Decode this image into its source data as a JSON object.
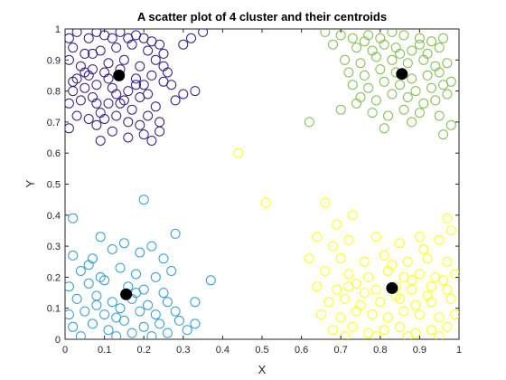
{
  "chart_data": {
    "type": "scatter",
    "title": "A scatter plot of 4 cluster and their centroids",
    "xlabel": "X",
    "ylabel": "Y",
    "xlim": [
      0,
      1
    ],
    "ylim": [
      0,
      1
    ],
    "xticks": [
      "0",
      "0.1",
      "0.2",
      "0.3",
      "0.4",
      "0.5",
      "0.6",
      "0.7",
      "0.8",
      "0.9",
      "1"
    ],
    "yticks": [
      "0",
      "0.1",
      "0.2",
      "0.3",
      "0.4",
      "0.5",
      "0.6",
      "0.7",
      "0.8",
      "0.9",
      "1"
    ],
    "grid": false,
    "marker": "open-circle",
    "series": [
      {
        "color": "#2b1d8f",
        "points": [
          [
            0.01,
            0.97
          ],
          [
            0.03,
            0.99
          ],
          [
            0.06,
            0.97
          ],
          [
            0.08,
            0.99
          ],
          [
            0.1,
            0.98
          ],
          [
            0.12,
            0.97
          ],
          [
            0.14,
            0.99
          ],
          [
            0.16,
            0.97
          ],
          [
            0.18,
            0.98
          ],
          [
            0.2,
            0.97
          ],
          [
            0.22,
            0.96
          ],
          [
            0.24,
            0.95
          ],
          [
            0.02,
            0.94
          ],
          [
            0.05,
            0.92
          ],
          [
            0.09,
            0.93
          ],
          [
            0.13,
            0.94
          ],
          [
            0.17,
            0.95
          ],
          [
            0.21,
            0.93
          ],
          [
            0.25,
            0.92
          ],
          [
            0.01,
            0.9
          ],
          [
            0.04,
            0.88
          ],
          [
            0.07,
            0.87
          ],
          [
            0.11,
            0.89
          ],
          [
            0.15,
            0.9
          ],
          [
            0.19,
            0.88
          ],
          [
            0.23,
            0.9
          ],
          [
            0.26,
            0.86
          ],
          [
            0.03,
            0.84
          ],
          [
            0.06,
            0.85
          ],
          [
            0.1,
            0.86
          ],
          [
            0.14,
            0.87
          ],
          [
            0.18,
            0.84
          ],
          [
            0.22,
            0.85
          ],
          [
            0.02,
            0.8
          ],
          [
            0.05,
            0.81
          ],
          [
            0.08,
            0.82
          ],
          [
            0.12,
            0.81
          ],
          [
            0.16,
            0.8
          ],
          [
            0.2,
            0.82
          ],
          [
            0.25,
            0.83
          ],
          [
            0.01,
            0.76
          ],
          [
            0.04,
            0.77
          ],
          [
            0.07,
            0.78
          ],
          [
            0.11,
            0.76
          ],
          [
            0.15,
            0.77
          ],
          [
            0.19,
            0.78
          ],
          [
            0.23,
            0.75
          ],
          [
            0.28,
            0.77
          ],
          [
            0.03,
            0.72
          ],
          [
            0.06,
            0.71
          ],
          [
            0.09,
            0.73
          ],
          [
            0.13,
            0.72
          ],
          [
            0.17,
            0.74
          ],
          [
            0.21,
            0.72
          ],
          [
            0.24,
            0.7
          ],
          [
            0.01,
            0.68
          ],
          [
            0.08,
            0.69
          ],
          [
            0.12,
            0.67
          ],
          [
            0.16,
            0.7
          ],
          [
            0.2,
            0.66
          ],
          [
            0.09,
            0.64
          ],
          [
            0.16,
            0.65
          ],
          [
            0.22,
            0.64
          ],
          [
            0.3,
            0.95
          ],
          [
            0.32,
            0.97
          ],
          [
            0.35,
            0.99
          ],
          [
            0.33,
            0.8
          ],
          [
            0.3,
            0.79
          ],
          [
            0.27,
            0.82
          ],
          [
            0.24,
            0.67
          ],
          [
            0.19,
            0.69
          ],
          [
            0.08,
            0.76
          ],
          [
            0.14,
            0.76
          ],
          [
            0.02,
            0.83
          ],
          [
            0.1,
            0.71
          ],
          [
            0.13,
            0.79
          ],
          [
            0.21,
            0.79
          ],
          [
            0.05,
            0.86
          ],
          [
            0.18,
            0.82
          ],
          [
            0.25,
            0.88
          ],
          [
            0.11,
            0.84
          ],
          [
            0.07,
            0.92
          ]
        ]
      },
      {
        "color": "#7cc044",
        "points": [
          [
            0.66,
            0.99
          ],
          [
            0.7,
            0.98
          ],
          [
            0.73,
            0.97
          ],
          [
            0.77,
            0.98
          ],
          [
            0.8,
            0.97
          ],
          [
            0.83,
            0.99
          ],
          [
            0.86,
            0.98
          ],
          [
            0.9,
            0.97
          ],
          [
            0.93,
            0.96
          ],
          [
            0.96,
            0.97
          ],
          [
            0.68,
            0.95
          ],
          [
            0.74,
            0.94
          ],
          [
            0.78,
            0.93
          ],
          [
            0.81,
            0.95
          ],
          [
            0.84,
            0.94
          ],
          [
            0.88,
            0.93
          ],
          [
            0.92,
            0.92
          ],
          [
            0.95,
            0.94
          ],
          [
            0.71,
            0.9
          ],
          [
            0.75,
            0.89
          ],
          [
            0.79,
            0.91
          ],
          [
            0.83,
            0.9
          ],
          [
            0.87,
            0.89
          ],
          [
            0.91,
            0.9
          ],
          [
            0.94,
            0.88
          ],
          [
            0.97,
            0.89
          ],
          [
            0.72,
            0.86
          ],
          [
            0.76,
            0.85
          ],
          [
            0.8,
            0.87
          ],
          [
            0.84,
            0.86
          ],
          [
            0.88,
            0.84
          ],
          [
            0.92,
            0.85
          ],
          [
            0.95,
            0.86
          ],
          [
            0.98,
            0.83
          ],
          [
            0.73,
            0.82
          ],
          [
            0.77,
            0.81
          ],
          [
            0.81,
            0.83
          ],
          [
            0.85,
            0.82
          ],
          [
            0.89,
            0.8
          ],
          [
            0.93,
            0.81
          ],
          [
            0.96,
            0.82
          ],
          [
            0.75,
            0.78
          ],
          [
            0.79,
            0.77
          ],
          [
            0.83,
            0.79
          ],
          [
            0.87,
            0.78
          ],
          [
            0.91,
            0.76
          ],
          [
            0.94,
            0.77
          ],
          [
            0.97,
            0.79
          ],
          [
            0.7,
            0.74
          ],
          [
            0.78,
            0.73
          ],
          [
            0.82,
            0.72
          ],
          [
            0.86,
            0.74
          ],
          [
            0.9,
            0.73
          ],
          [
            0.95,
            0.72
          ],
          [
            0.62,
            0.7
          ],
          [
            0.81,
            0.68
          ],
          [
            0.88,
            0.7
          ],
          [
            0.96,
            0.66
          ],
          [
            0.98,
            0.69
          ],
          [
            0.85,
            0.92
          ],
          [
            0.76,
            0.96
          ],
          [
            0.9,
            0.95
          ],
          [
            0.74,
            0.76
          ]
        ]
      },
      {
        "color": "#2a9ddf",
        "points": [
          [
            0.02,
            0.39
          ],
          [
            0.2,
            0.45
          ],
          [
            0.28,
            0.34
          ],
          [
            0.09,
            0.33
          ],
          [
            0.15,
            0.31
          ],
          [
            0.22,
            0.3
          ],
          [
            0.02,
            0.27
          ],
          [
            0.07,
            0.26
          ],
          [
            0.12,
            0.29
          ],
          [
            0.19,
            0.28
          ],
          [
            0.25,
            0.26
          ],
          [
            0.04,
            0.22
          ],
          [
            0.09,
            0.2
          ],
          [
            0.14,
            0.23
          ],
          [
            0.18,
            0.21
          ],
          [
            0.23,
            0.2
          ],
          [
            0.27,
            0.22
          ],
          [
            0.01,
            0.17
          ],
          [
            0.06,
            0.18
          ],
          [
            0.1,
            0.19
          ],
          [
            0.16,
            0.17
          ],
          [
            0.2,
            0.16
          ],
          [
            0.25,
            0.15
          ],
          [
            0.37,
            0.19
          ],
          [
            0.03,
            0.13
          ],
          [
            0.08,
            0.14
          ],
          [
            0.12,
            0.12
          ],
          [
            0.17,
            0.13
          ],
          [
            0.21,
            0.11
          ],
          [
            0.26,
            0.12
          ],
          [
            0.33,
            0.12
          ],
          [
            0.01,
            0.08
          ],
          [
            0.05,
            0.09
          ],
          [
            0.1,
            0.08
          ],
          [
            0.14,
            0.1
          ],
          [
            0.19,
            0.09
          ],
          [
            0.23,
            0.08
          ],
          [
            0.28,
            0.09
          ],
          [
            0.02,
            0.04
          ],
          [
            0.07,
            0.05
          ],
          [
            0.11,
            0.03
          ],
          [
            0.15,
            0.06
          ],
          [
            0.2,
            0.04
          ],
          [
            0.24,
            0.05
          ],
          [
            0.29,
            0.06
          ],
          [
            0.33,
            0.05
          ],
          [
            0.04,
            0.01
          ],
          [
            0.13,
            0.01
          ],
          [
            0.17,
            0.02
          ],
          [
            0.22,
            0.01
          ],
          [
            0.26,
            0.02
          ],
          [
            0.31,
            0.03
          ],
          [
            0.08,
            0.11
          ],
          [
            0.18,
            0.15
          ],
          [
            0.13,
            0.07
          ],
          [
            0.06,
            0.24
          ]
        ]
      },
      {
        "color": "#ffff00",
        "points": [
          [
            0.44,
            0.6
          ],
          [
            0.51,
            0.44
          ],
          [
            0.66,
            0.44
          ],
          [
            0.69,
            0.37
          ],
          [
            0.73,
            0.4
          ],
          [
            0.97,
            0.39
          ],
          [
            0.98,
            0.35
          ],
          [
            0.64,
            0.33
          ],
          [
            0.68,
            0.3
          ],
          [
            0.72,
            0.32
          ],
          [
            0.79,
            0.33
          ],
          [
            0.85,
            0.31
          ],
          [
            0.9,
            0.33
          ],
          [
            0.95,
            0.32
          ],
          [
            0.62,
            0.26
          ],
          [
            0.7,
            0.26
          ],
          [
            0.76,
            0.25
          ],
          [
            0.81,
            0.27
          ],
          [
            0.87,
            0.25
          ],
          [
            0.92,
            0.26
          ],
          [
            0.97,
            0.25
          ],
          [
            0.66,
            0.22
          ],
          [
            0.72,
            0.21
          ],
          [
            0.77,
            0.2
          ],
          [
            0.82,
            0.22
          ],
          [
            0.86,
            0.2
          ],
          [
            0.9,
            0.21
          ],
          [
            0.94,
            0.2
          ],
          [
            0.99,
            0.21
          ],
          [
            0.64,
            0.17
          ],
          [
            0.69,
            0.16
          ],
          [
            0.74,
            0.18
          ],
          [
            0.79,
            0.16
          ],
          [
            0.84,
            0.17
          ],
          [
            0.88,
            0.16
          ],
          [
            0.93,
            0.17
          ],
          [
            0.97,
            0.16
          ],
          [
            0.67,
            0.12
          ],
          [
            0.71,
            0.13
          ],
          [
            0.75,
            0.11
          ],
          [
            0.8,
            0.12
          ],
          [
            0.85,
            0.13
          ],
          [
            0.89,
            0.11
          ],
          [
            0.93,
            0.12
          ],
          [
            0.98,
            0.13
          ],
          [
            0.65,
            0.08
          ],
          [
            0.7,
            0.07
          ],
          [
            0.74,
            0.09
          ],
          [
            0.78,
            0.08
          ],
          [
            0.82,
            0.07
          ],
          [
            0.86,
            0.09
          ],
          [
            0.9,
            0.08
          ],
          [
            0.95,
            0.07
          ],
          [
            0.99,
            0.08
          ],
          [
            0.68,
            0.03
          ],
          [
            0.73,
            0.04
          ],
          [
            0.77,
            0.02
          ],
          [
            0.81,
            0.03
          ],
          [
            0.85,
            0.04
          ],
          [
            0.89,
            0.02
          ],
          [
            0.93,
            0.03
          ],
          [
            0.97,
            0.04
          ],
          [
            0.71,
            0.01
          ],
          [
            0.79,
            0.01
          ],
          [
            0.87,
            0.01
          ],
          [
            0.95,
            0.01
          ],
          [
            0.76,
            0.15
          ],
          [
            0.84,
            0.14
          ],
          [
            0.92,
            0.14
          ],
          [
            0.72,
            0.17
          ],
          [
            0.88,
            0.19
          ],
          [
            0.96,
            0.19
          ],
          [
            0.83,
            0.24
          ],
          [
            0.91,
            0.29
          ]
        ]
      }
    ],
    "centroids": [
      {
        "x": 0.137,
        "y": 0.85,
        "color": "#000000"
      },
      {
        "x": 0.855,
        "y": 0.855,
        "color": "#000000"
      },
      {
        "x": 0.155,
        "y": 0.145,
        "color": "#000000"
      },
      {
        "x": 0.83,
        "y": 0.165,
        "color": "#000000"
      }
    ]
  }
}
